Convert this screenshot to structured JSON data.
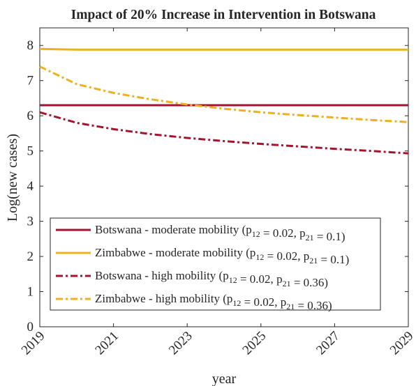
{
  "chart_data": {
    "type": "line",
    "title": "Impact of 20% Increase in Intervention in Botswana",
    "xlabel": "year",
    "ylabel": "Log(new cases)",
    "x": [
      2019,
      2020,
      2021,
      2022,
      2023,
      2024,
      2025,
      2026,
      2027,
      2028,
      2029
    ],
    "xlim": [
      2019,
      2029
    ],
    "xticks": [
      2019,
      2021,
      2023,
      2025,
      2027,
      2029
    ],
    "ylim": [
      0,
      8.5
    ],
    "yticks": [
      0,
      1,
      2,
      3,
      4,
      5,
      6,
      7,
      8
    ],
    "grid": false,
    "legend": "lower left",
    "series": [
      {
        "name": "Botswana - moderate mobility (p12 = 0.02, p21 = 0.1)",
        "color": "#a2142f",
        "style": "solid",
        "values": [
          6.3,
          6.3,
          6.3,
          6.3,
          6.3,
          6.3,
          6.3,
          6.3,
          6.3,
          6.3,
          6.3
        ]
      },
      {
        "name": "Zimbabwe - moderate mobility (p12 = 0.02, p21 = 0.1)",
        "color": "#edb120",
        "style": "solid",
        "values": [
          7.9,
          7.88,
          7.88,
          7.88,
          7.88,
          7.88,
          7.88,
          7.88,
          7.88,
          7.88,
          7.88
        ]
      },
      {
        "name": "Botswana - high mobility (p12 = 0.02, p21 = 0.36)",
        "color": "#a2142f",
        "style": "dashdot",
        "values": [
          6.1,
          5.8,
          5.62,
          5.48,
          5.37,
          5.28,
          5.2,
          5.13,
          5.06,
          5.0,
          4.93
        ]
      },
      {
        "name": "Zimbabwe - high mobility (p12 = 0.02, p21 = 0.36)",
        "color": "#edb120",
        "style": "dashdot",
        "values": [
          7.4,
          6.9,
          6.65,
          6.47,
          6.32,
          6.2,
          6.1,
          6.02,
          5.95,
          5.88,
          5.82
        ]
      }
    ]
  }
}
